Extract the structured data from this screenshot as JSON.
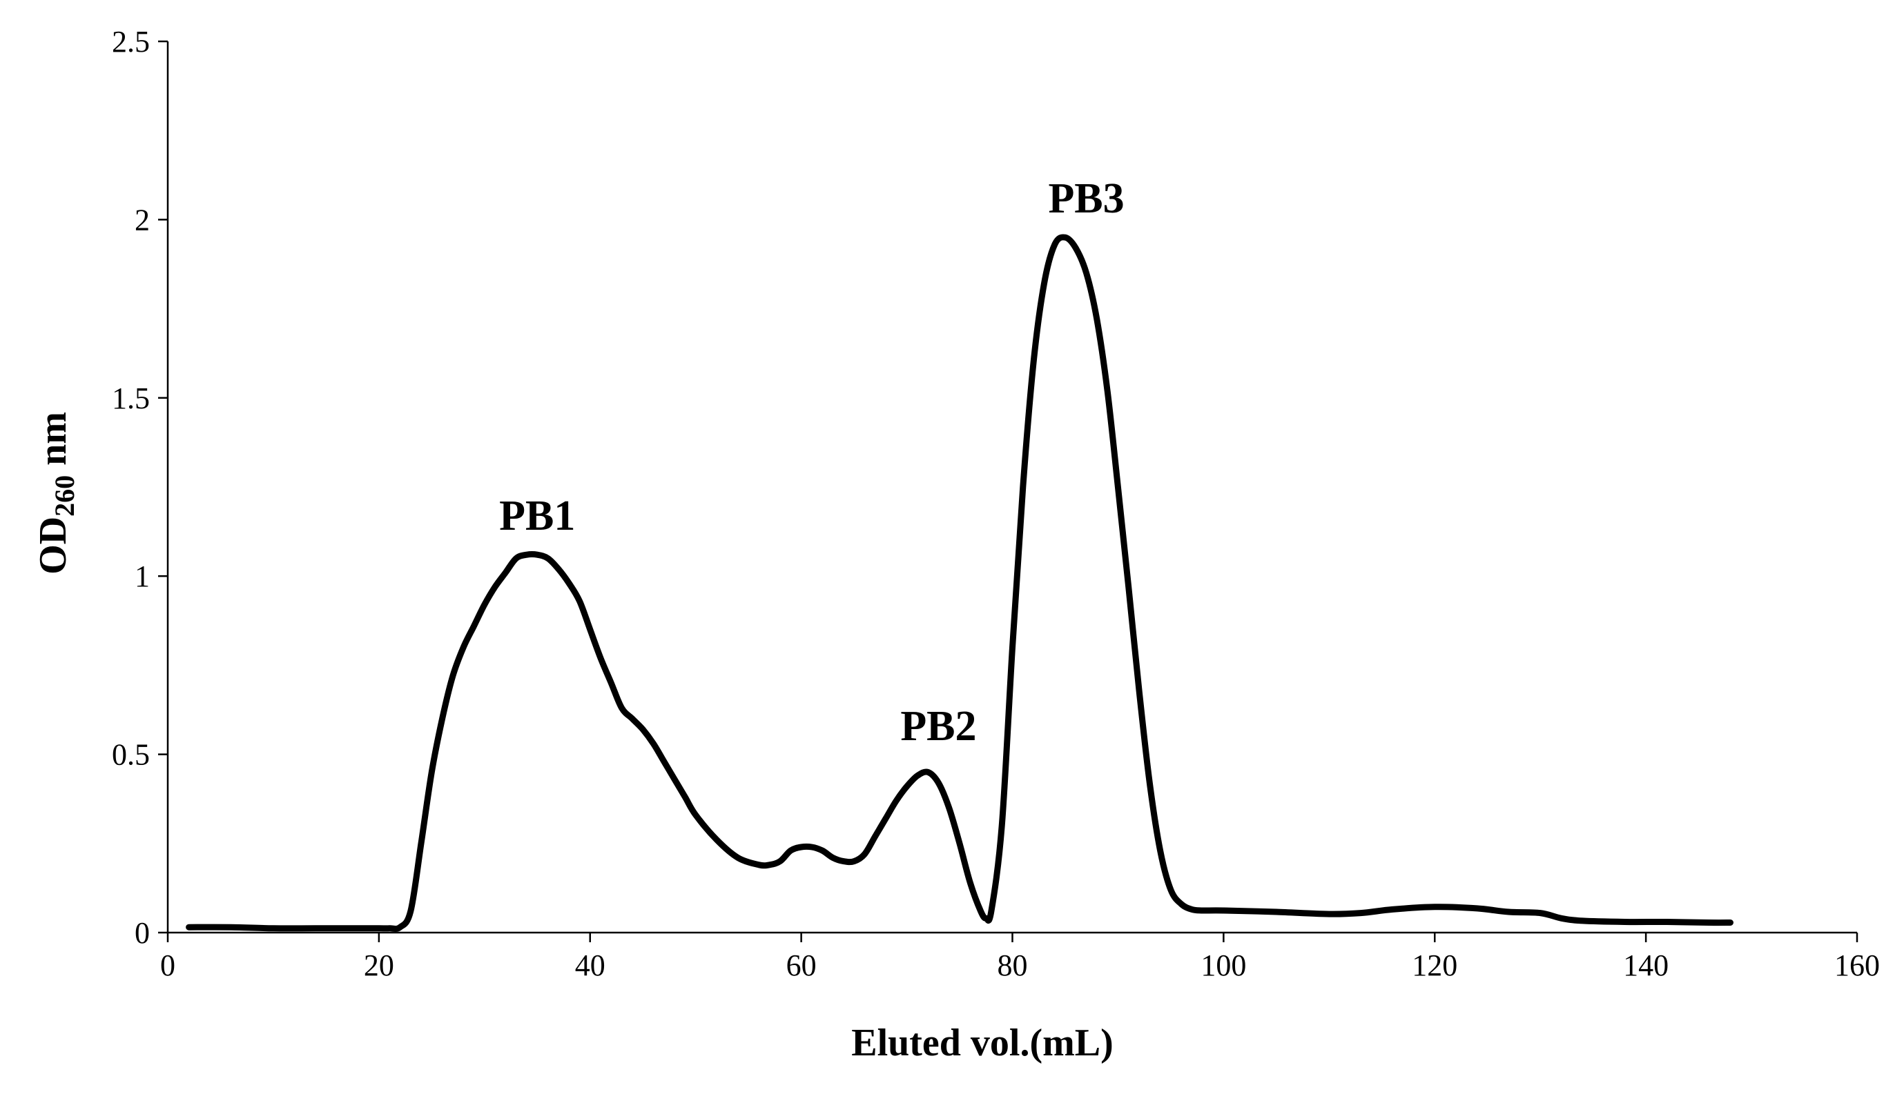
{
  "chart_data": {
    "type": "line",
    "title": "",
    "xlabel": "Eluted vol.(mL)",
    "ylabel": {
      "prefix": "OD",
      "subscript": "260",
      "suffix": " nm"
    },
    "xlim": [
      0,
      160
    ],
    "ylim": [
      0,
      2.5
    ],
    "xticks": [
      0,
      20,
      40,
      60,
      80,
      100,
      120,
      140,
      160
    ],
    "xtick_labels": [
      "0",
      "20",
      "40",
      "60",
      "80",
      "100",
      "120",
      "140",
      "160"
    ],
    "yticks": [
      0,
      0.5,
      1,
      1.5,
      2,
      2.5
    ],
    "ytick_labels": [
      "0",
      "0.5",
      "1",
      "1.5",
      "2",
      "2.5"
    ],
    "grid": false,
    "legend": "none",
    "series": [
      {
        "name": "OD260",
        "color": "#000000",
        "x": [
          2,
          6,
          10,
          14,
          18,
          20,
          21,
          22,
          23,
          24,
          25,
          26,
          27,
          28,
          29,
          30,
          31,
          32,
          33,
          34,
          35,
          36,
          37,
          38,
          39,
          40,
          41,
          42,
          43,
          44,
          45,
          46,
          47,
          48,
          49,
          50,
          52,
          54,
          56,
          57,
          58,
          59,
          60,
          61,
          62,
          63,
          64,
          65,
          66,
          67,
          68,
          69,
          70,
          71,
          72,
          73,
          74,
          75,
          76,
          77,
          77.5,
          78,
          79,
          80,
          81,
          82,
          83,
          84,
          85,
          86,
          87,
          88,
          89,
          90,
          91,
          92,
          93,
          94,
          95,
          96,
          97,
          98,
          100,
          105,
          110,
          113,
          116,
          120,
          124,
          127,
          130,
          132,
          134,
          138,
          142,
          146,
          148
        ],
        "y": [
          0.015,
          0.015,
          0.012,
          0.012,
          0.012,
          0.012,
          0.012,
          0.015,
          0.06,
          0.25,
          0.45,
          0.6,
          0.72,
          0.8,
          0.86,
          0.92,
          0.97,
          1.01,
          1.05,
          1.06,
          1.06,
          1.05,
          1.02,
          0.98,
          0.93,
          0.85,
          0.77,
          0.7,
          0.63,
          0.6,
          0.57,
          0.53,
          0.48,
          0.43,
          0.38,
          0.33,
          0.26,
          0.21,
          0.19,
          0.19,
          0.2,
          0.23,
          0.24,
          0.24,
          0.23,
          0.21,
          0.2,
          0.2,
          0.22,
          0.27,
          0.32,
          0.37,
          0.41,
          0.44,
          0.45,
          0.42,
          0.35,
          0.25,
          0.14,
          0.06,
          0.04,
          0.06,
          0.3,
          0.8,
          1.25,
          1.6,
          1.82,
          1.93,
          1.95,
          1.92,
          1.85,
          1.72,
          1.52,
          1.25,
          0.97,
          0.68,
          0.42,
          0.23,
          0.12,
          0.08,
          0.065,
          0.062,
          0.062,
          0.058,
          0.052,
          0.055,
          0.065,
          0.072,
          0.068,
          0.058,
          0.055,
          0.04,
          0.033,
          0.03,
          0.03,
          0.028,
          0.028
        ]
      }
    ],
    "annotations": [
      {
        "text": "PB1",
        "x": 35,
        "y": 1.13
      },
      {
        "text": "PB2",
        "x": 73,
        "y": 0.54
      },
      {
        "text": "PB3",
        "x": 87,
        "y": 2.02
      }
    ]
  }
}
